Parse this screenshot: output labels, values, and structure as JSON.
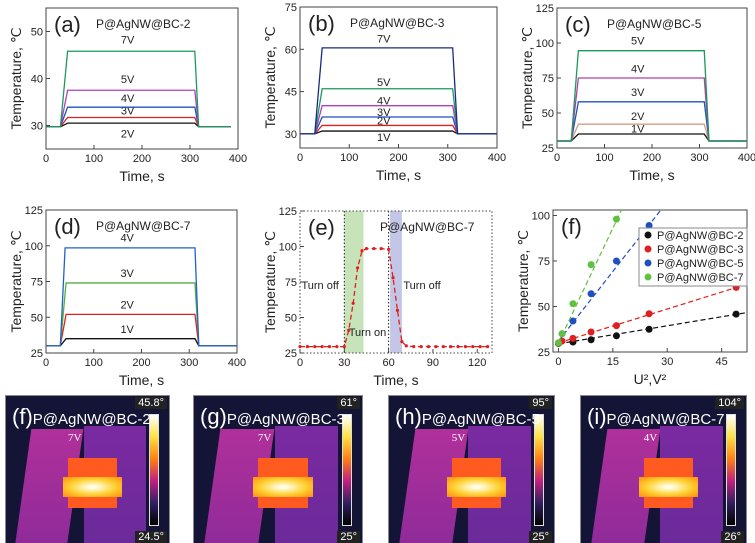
{
  "chart_data": [
    {
      "panel": "(a)",
      "title": "P@AgNW@BC-2",
      "type": "line",
      "xlabel": "Time, s",
      "ylabel": "Temperature, ℃",
      "xlim": [
        0,
        400
      ],
      "ylim": [
        25,
        55
      ],
      "xticks": [
        0,
        100,
        200,
        300,
        400
      ],
      "yticks": [
        30,
        40,
        50
      ],
      "series": [
        {
          "name": "2V",
          "color": "#111111",
          "x": [
            0,
            30,
            45,
            310,
            318,
            385
          ],
          "y": [
            29.7,
            29.7,
            30.5,
            30.5,
            29.7,
            29.7
          ],
          "label_at": [
            170,
            27.5
          ]
        },
        {
          "name": "3V",
          "color": "#e02020",
          "x": [
            0,
            30,
            45,
            310,
            318,
            385
          ],
          "y": [
            29.7,
            29.7,
            31.7,
            31.7,
            29.7,
            29.7
          ],
          "label_at": [
            170,
            32.3
          ]
        },
        {
          "name": "4V",
          "color": "#2050c0",
          "x": [
            0,
            30,
            45,
            310,
            318,
            385
          ],
          "y": [
            29.7,
            29.7,
            33.9,
            33.9,
            29.7,
            29.7
          ],
          "label_at": [
            170,
            35
          ]
        },
        {
          "name": "5V",
          "color": "#b040c0",
          "x": [
            0,
            30,
            45,
            310,
            318,
            385
          ],
          "y": [
            29.7,
            29.7,
            37.5,
            37.5,
            29.7,
            29.7
          ],
          "label_at": [
            170,
            39
          ]
        },
        {
          "name": "7V",
          "color": "#1a9a5a",
          "x": [
            0,
            30,
            45,
            310,
            318,
            385
          ],
          "y": [
            29.7,
            29.7,
            45.8,
            45.8,
            29.7,
            29.7
          ],
          "label_at": [
            170,
            47.5
          ]
        }
      ]
    },
    {
      "panel": "(b)",
      "title": "P@AgNW@BC-3",
      "type": "line",
      "xlabel": "Time, s",
      "ylabel": "Temperature, ℃",
      "xlim": [
        0,
        400
      ],
      "ylim": [
        25,
        75
      ],
      "xticks": [
        0,
        100,
        200,
        300,
        400
      ],
      "yticks": [
        30,
        45,
        60,
        75
      ],
      "series": [
        {
          "name": "1V",
          "color": "#111111",
          "x": [
            0,
            30,
            45,
            310,
            320,
            400
          ],
          "y": [
            30,
            30,
            31,
            31,
            30,
            30
          ],
          "label_at": [
            170,
            27.5
          ]
        },
        {
          "name": "2V",
          "color": "#e02020",
          "x": [
            0,
            30,
            45,
            310,
            320,
            400
          ],
          "y": [
            30,
            30,
            33,
            33,
            30,
            30
          ],
          "label_at": [
            170,
            33.3
          ]
        },
        {
          "name": "3V",
          "color": "#2050c0",
          "x": [
            0,
            30,
            45,
            310,
            320,
            400
          ],
          "y": [
            30,
            30,
            36,
            36,
            30,
            30
          ],
          "label_at": [
            170,
            36.3
          ]
        },
        {
          "name": "4V",
          "color": "#b040c0",
          "x": [
            0,
            30,
            45,
            310,
            320,
            400
          ],
          "y": [
            30,
            30,
            40,
            40,
            30,
            30
          ],
          "label_at": [
            170,
            40.5
          ]
        },
        {
          "name": "5V",
          "color": "#1a9a5a",
          "x": [
            0,
            30,
            45,
            310,
            320,
            400
          ],
          "y": [
            30,
            30,
            46,
            46,
            30,
            30
          ],
          "label_at": [
            170,
            47
          ]
        },
        {
          "name": "7V",
          "color": "#1a2a80",
          "x": [
            0,
            30,
            45,
            310,
            320,
            400
          ],
          "y": [
            30,
            30,
            60.5,
            60.5,
            30,
            30
          ],
          "label_at": [
            170,
            62.5
          ]
        }
      ]
    },
    {
      "panel": "(c)",
      "title": "P@AgNW@BC-5",
      "type": "line",
      "xlabel": "Time, s",
      "ylabel": "Temperature, ℃",
      "xlim": [
        0,
        400
      ],
      "ylim": [
        25,
        125
      ],
      "xticks": [
        0,
        100,
        200,
        300,
        400
      ],
      "yticks": [
        25,
        50,
        75,
        100,
        125
      ],
      "series": [
        {
          "name": "1V",
          "color": "#111111",
          "x": [
            0,
            30,
            45,
            310,
            320,
            400
          ],
          "y": [
            30,
            30,
            35,
            35,
            30,
            30
          ],
          "label_at": [
            170,
            36
          ]
        },
        {
          "name": "2V",
          "color": "#d0a080",
          "x": [
            0,
            30,
            45,
            310,
            320,
            400
          ],
          "y": [
            30,
            30,
            42,
            42,
            30,
            30
          ],
          "label_at": [
            170,
            45
          ]
        },
        {
          "name": "3V",
          "color": "#2050c0",
          "x": [
            0,
            30,
            45,
            310,
            320,
            400
          ],
          "y": [
            30,
            30,
            58,
            58,
            30,
            30
          ],
          "label_at": [
            170,
            62
          ]
        },
        {
          "name": "4V",
          "color": "#b040a0",
          "x": [
            0,
            30,
            45,
            310,
            320,
            400
          ],
          "y": [
            30,
            30,
            75,
            75,
            30,
            30
          ],
          "label_at": [
            170,
            79
          ]
        },
        {
          "name": "5V",
          "color": "#1a9a5a",
          "x": [
            0,
            30,
            45,
            310,
            320,
            400
          ],
          "y": [
            30,
            30,
            94.5,
            94.5,
            30,
            30
          ],
          "label_at": [
            170,
            99
          ]
        }
      ]
    },
    {
      "panel": "(d)",
      "title": "P@AgNW@BC-7",
      "type": "line",
      "xlabel": "Time, s",
      "ylabel": "Temperature, ℃",
      "xlim": [
        0,
        400
      ],
      "ylim": [
        25,
        125
      ],
      "xticks": [
        0,
        100,
        200,
        300,
        400
      ],
      "yticks": [
        25,
        50,
        75,
        100,
        125
      ],
      "series": [
        {
          "name": "1V",
          "color": "#111111",
          "x": [
            0,
            30,
            42,
            312,
            320,
            400
          ],
          "y": [
            30,
            30,
            35,
            35,
            30,
            30
          ],
          "label_at": [
            170,
            39
          ]
        },
        {
          "name": "2V",
          "color": "#e02020",
          "x": [
            0,
            30,
            42,
            312,
            320,
            400
          ],
          "y": [
            30,
            30,
            52,
            52,
            30,
            30
          ],
          "label_at": [
            170,
            56
          ]
        },
        {
          "name": "3V",
          "color": "#50b040",
          "x": [
            0,
            30,
            42,
            312,
            320,
            400
          ],
          "y": [
            30,
            30,
            74,
            74,
            30,
            30
          ],
          "label_at": [
            170,
            78
          ]
        },
        {
          "name": "4V",
          "color": "#2060c8",
          "x": [
            0,
            30,
            40,
            312,
            320,
            400
          ],
          "y": [
            30,
            30,
            98.5,
            98.5,
            30,
            30
          ],
          "label_at": [
            170,
            103
          ]
        }
      ]
    },
    {
      "panel": "(e)",
      "title": "P@AgNW@BC-7",
      "type": "line",
      "xlabel": "Time, s",
      "ylabel": "Temperature, ℃",
      "xlim": [
        0,
        130
      ],
      "ylim": [
        25,
        125
      ],
      "xticks": [
        0,
        30,
        60,
        90,
        120
      ],
      "yticks": [
        25,
        50,
        75,
        100,
        125
      ],
      "bands": [
        {
          "from": 30,
          "to": 43,
          "color": "#b8dca8"
        },
        {
          "from": 61,
          "to": 69,
          "color": "#b4b8e0"
        }
      ],
      "vlines": [
        30,
        60
      ],
      "annotations": [
        {
          "text": "Turn off",
          "x": 1,
          "y": 70
        },
        {
          "text": "Turn on",
          "x": 33,
          "y": 37
        },
        {
          "text": "Turn off",
          "x": 70,
          "y": 70
        }
      ],
      "series": [
        {
          "name": "BC-7",
          "color": "#e02020",
          "dashed": true,
          "markers": true,
          "x": [
            0,
            5,
            10,
            15,
            20,
            25,
            30,
            33,
            36,
            39,
            42,
            45,
            50,
            55,
            60,
            63,
            66,
            69,
            72,
            77,
            82,
            87,
            92,
            97,
            102,
            107,
            112,
            117,
            122,
            127
          ],
          "y": [
            29.5,
            29.5,
            29.5,
            29.5,
            29.5,
            29.5,
            29.5,
            41,
            60,
            85,
            97,
            98.5,
            98.5,
            98.5,
            98,
            78,
            55,
            33,
            30,
            29.5,
            29.5,
            29.5,
            29.5,
            29.5,
            29.5,
            29.5,
            29.5,
            29.5,
            29.5,
            29.5
          ]
        }
      ]
    },
    {
      "panel": "(f)",
      "title": "",
      "type": "scatter",
      "xlabel": "U²,V²",
      "ylabel": "Temperature, ℃",
      "xlim": [
        -1.5,
        52
      ],
      "ylim": [
        25,
        103
      ],
      "xticks": [
        0,
        15,
        30,
        45
      ],
      "yticks": [
        25,
        50,
        75,
        100
      ],
      "legend": "right",
      "series": [
        {
          "name": "P@AgNW@BC-2",
          "color": "#111111",
          "x": [
            0,
            4,
            9,
            16,
            25,
            49
          ],
          "y": [
            29.7,
            30.5,
            31.7,
            33.9,
            37.5,
            45.8
          ],
          "fit": [
            29.5,
            0.33
          ]
        },
        {
          "name": "P@AgNW@BC-3",
          "color": "#e02020",
          "x": [
            0,
            1,
            4,
            9,
            16,
            25,
            49
          ],
          "y": [
            30,
            31,
            32.5,
            36,
            39.5,
            46,
            60.5
          ],
          "fit": [
            30,
            0.62
          ]
        },
        {
          "name": "P@AgNW@BC-5",
          "color": "#2050c0",
          "x": [
            1,
            4,
            9,
            16,
            25
          ],
          "y": [
            35,
            42,
            57,
            75,
            94.5
          ],
          "fit": [
            31,
            2.55
          ]
        },
        {
          "name": "P@AgNW@BC-7",
          "color": "#60c040",
          "x": [
            0,
            1,
            4,
            9,
            16
          ],
          "y": [
            30,
            35,
            51.5,
            73,
            98
          ],
          "fit": [
            30,
            4.2
          ]
        }
      ]
    }
  ],
  "thermal_images": [
    {
      "panel": "(f)",
      "sample": "P@AgNW@BC-2",
      "voltage": "7V",
      "max": "45.8°",
      "min": "24.5°"
    },
    {
      "panel": "(g)",
      "sample": "P@AgNW@BC-3",
      "voltage": "7V",
      "max": "61°",
      "min": "25°"
    },
    {
      "panel": "(h)",
      "sample": "P@AgNW@BC-5",
      "voltage": "5V",
      "max": "95°",
      "min": "25°"
    },
    {
      "panel": "(i)",
      "sample": "P@AgNW@BC-7",
      "voltage": "4V",
      "max": "104°",
      "min": "26°"
    }
  ]
}
